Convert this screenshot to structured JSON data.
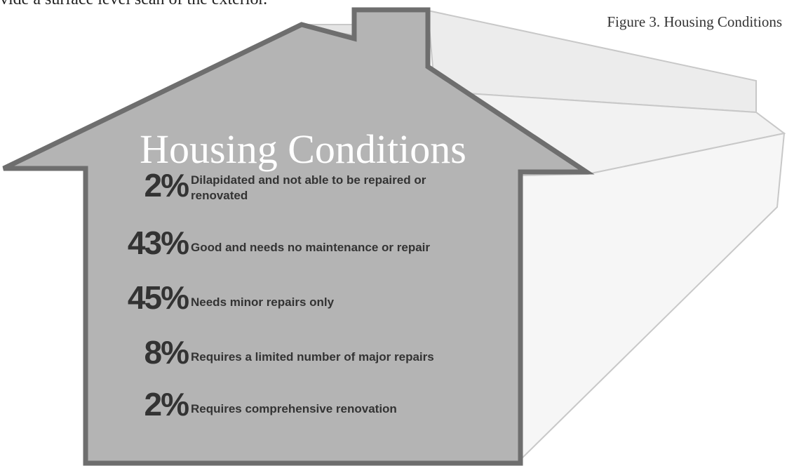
{
  "intro_text": "vide a surface level scan of the exterior.",
  "caption": "Figure 3. Housing Conditions",
  "title": "Housing Conditions",
  "items": [
    {
      "percent": "2%",
      "label": [
        "Dilapidated and not able to be repaired or",
        "renovated"
      ]
    },
    {
      "percent": "43%",
      "label": [
        "Good and needs no maintenance or repair"
      ]
    },
    {
      "percent": "45%",
      "label": [
        "Needs minor repairs only"
      ]
    },
    {
      "percent": "8%",
      "label": [
        "Requires a limited number of major repairs"
      ]
    },
    {
      "percent": "2%",
      "label": [
        "Requires comprehensive renovation"
      ]
    }
  ]
}
